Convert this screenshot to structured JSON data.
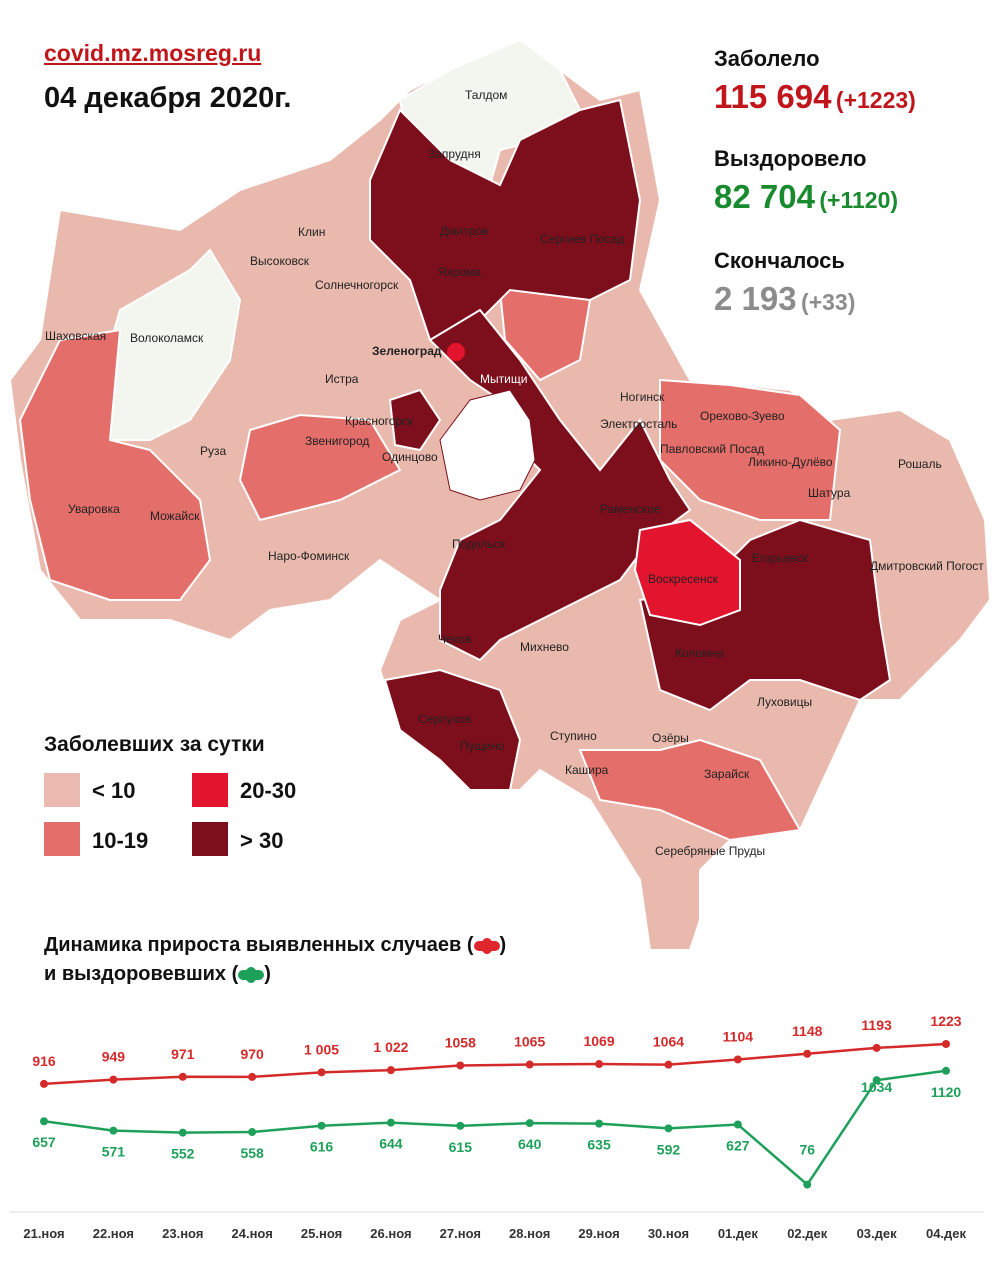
{
  "header": {
    "source": "covid.mz.mosreg.ru",
    "date": "04 декабря 2020г."
  },
  "stats": {
    "infected_label": "Заболело",
    "infected_value": "115 694",
    "infected_delta": "(+1223)",
    "recovered_label": "Выздоровело",
    "recovered_value": "82 704",
    "recovered_delta": "(+1120)",
    "died_label": "Скончалось",
    "died_value": "2 193",
    "died_delta": "(+33)"
  },
  "colors": {
    "infected": "#c0161b",
    "recovered": "#1a8a2e",
    "died": "#8c8c8c",
    "lt10": "#eab9b0",
    "r10_19": "#e46e6a",
    "r20_30": "#e3142d",
    "gt30": "#7d0e1c",
    "no_data": "#f3f5ef",
    "line_cases": "#d42a2a",
    "line_recovered": "#1fa05a"
  },
  "map": {
    "labels": [
      "Талдом",
      "Запрудня",
      "Дмитров",
      "Яхрома",
      "Сергиев Посад",
      "Клин",
      "Высоковск",
      "Солнечногорск",
      "Волоколамск",
      "Шаховская",
      "Зеленоград",
      "Мытищи",
      "Истра",
      "Красногорск",
      "Ногинск",
      "Электросталь",
      "Орехово-Зуево",
      "Звенигород",
      "Одинцово",
      "Павловский Посад",
      "Ликино-Дулёво",
      "Руза",
      "Рошаль",
      "Уваровка",
      "Можайск",
      "Раменское",
      "Шатура",
      "Наро-Фоминск",
      "Подольск",
      "Егорьевск",
      "Воскресенск",
      "Дмитровский Погост",
      "Чехов",
      "Михнево",
      "Коломна",
      "Луховицы",
      "Серпухов",
      "Пущино",
      "Ступино",
      "Озёры",
      "Кашира",
      "Зарайск",
      "Серебряные Пруды"
    ]
  },
  "legend": {
    "title": "Заболевших за сутки",
    "items": [
      "< 10",
      "10-19",
      "20-30",
      "> 30"
    ]
  },
  "chart_titles": {
    "line1": "Динамика прироста выявленных случаев (",
    "line2": "и выздоровевших (",
    "close": ")"
  },
  "chart_data": {
    "type": "line",
    "title": "Динамика прироста выявленных случаев и выздоровевших",
    "categories": [
      "21.ноя",
      "22.ноя",
      "23.ноя",
      "24.ноя",
      "25.ноя",
      "26.ноя",
      "27.ноя",
      "28.ноя",
      "29.ноя",
      "30.ноя",
      "01.дек",
      "02.дек",
      "03.дек",
      "04.дек"
    ],
    "series": [
      {
        "name": "выявленных случаев",
        "values": [
          916,
          949,
          971,
          970,
          1005,
          1022,
          1058,
          1065,
          1069,
          1064,
          1104,
          1148,
          1193,
          1223
        ],
        "labels": [
          "916",
          "949",
          "971",
          "970",
          "1 005",
          "1 022",
          "1058",
          "1065",
          "1069",
          "1064",
          "1104",
          "1148",
          "1193",
          "1223"
        ]
      },
      {
        "name": "выздоровевших",
        "values": [
          657,
          571,
          552,
          558,
          616,
          644,
          615,
          640,
          635,
          592,
          627,
          76,
          1034,
          1120
        ],
        "labels": [
          "657",
          "571",
          "552",
          "558",
          "616",
          "644",
          "615",
          "640",
          "635",
          "592",
          "627",
          "76",
          "1034",
          "1120"
        ]
      }
    ],
    "grid": false
  }
}
